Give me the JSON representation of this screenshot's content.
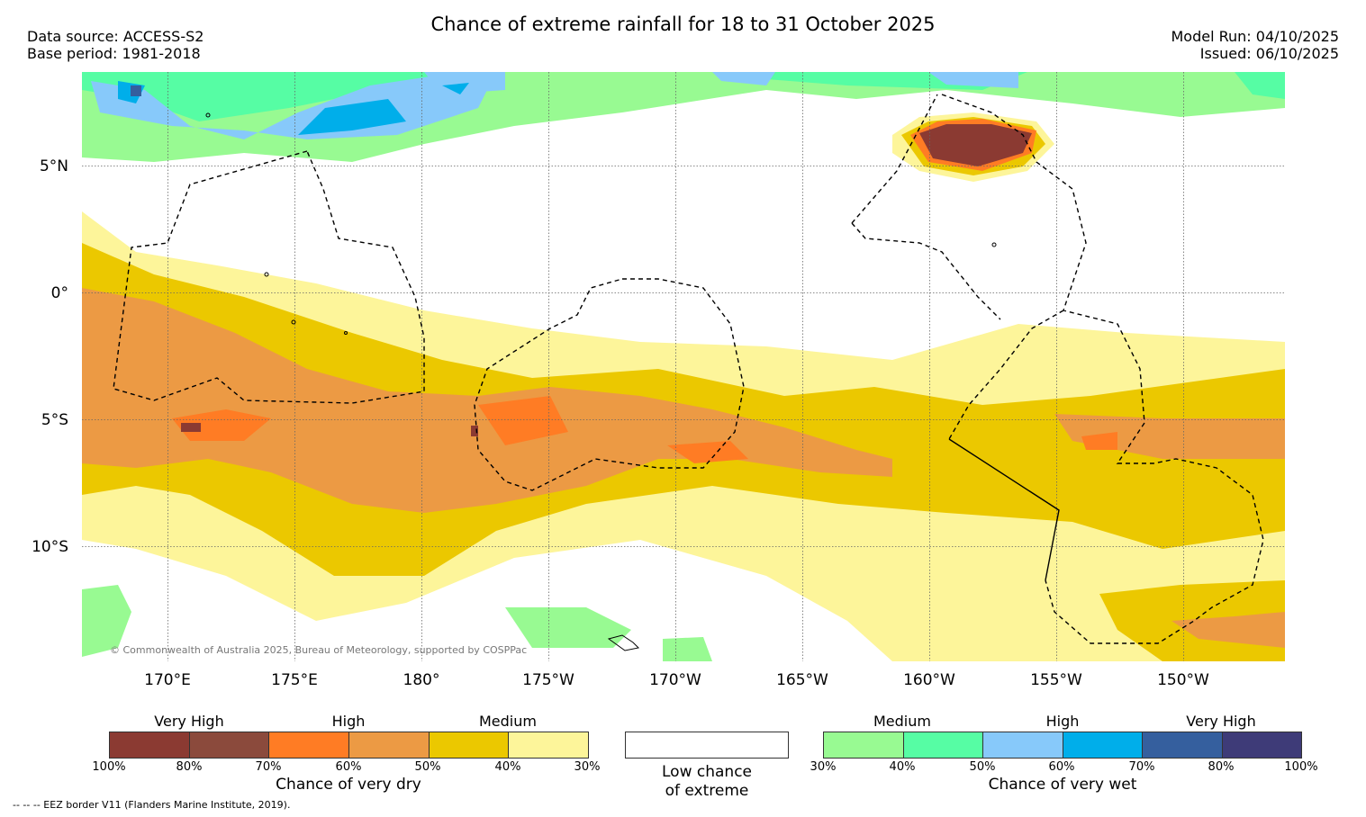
{
  "title": "Chance of extreme rainfall for 18 to 31 October 2025",
  "info_left": {
    "data_source": "Data source: ACCESS-S2",
    "base_period": "Base period: 1981-2018"
  },
  "info_right": {
    "model_run": "Model Run: 04/10/2025",
    "issued": "Issued: 06/10/2025"
  },
  "map": {
    "lat_labels": [
      "5°N",
      "0°",
      "5°S",
      "10°S"
    ],
    "lon_labels": [
      "170°E",
      "175°E",
      "180°",
      "175°W",
      "170°W",
      "165°W",
      "160°W",
      "155°W",
      "150°W"
    ],
    "copyright": "© Commonwealth of Australia 2025, Bureau of Meteorology, supported by COSPPac"
  },
  "legend": {
    "dry": {
      "headings": [
        "Very High",
        "High",
        "Medium"
      ],
      "ticks": [
        "100%",
        "80%",
        "70%",
        "60%",
        "50%",
        "40%",
        "30%"
      ],
      "label": "Chance of very dry",
      "colors": [
        "#8b3a32",
        "#8b4a3c",
        "#ff7c24",
        "#ec9a44",
        "#ebc800",
        "#fdf59a"
      ]
    },
    "low": {
      "line1": "Low chance",
      "line2": "of extreme"
    },
    "wet": {
      "headings": [
        "Medium",
        "High",
        "Very High"
      ],
      "ticks": [
        "30%",
        "40%",
        "50%",
        "60%",
        "70%",
        "80%",
        "100%"
      ],
      "label": "Chance of very wet",
      "colors": [
        "#98fa92",
        "#56fda4",
        "#87c9fa",
        "#00aeea",
        "#355f9e",
        "#3e3b78"
      ]
    }
  },
  "footnote": "--  --  -- EEZ border V11 (Flanders Marine Institute, 2019)."
}
